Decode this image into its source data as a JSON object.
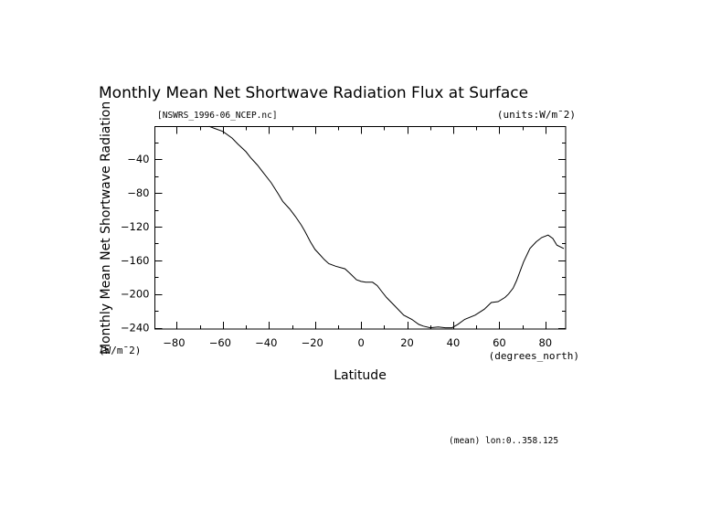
{
  "chart_data": {
    "type": "line",
    "title": "Monthly Mean Net Shortwave Radiation Flux at Surface",
    "subtitle_left": "[NSWRS_1996-06_NCEP.nc]",
    "subtitle_right": "(units:W/m¯2)",
    "xlabel": "Latitude",
    "xunits": "(degrees_north)",
    "ylabel": "Monthly Mean Net Shortwave Radiation",
    "yunits": "(W/m¯2)",
    "footnote": "(mean) lon:0..358.125",
    "xlim": [
      -89.5,
      88.8
    ],
    "ylim": [
      -241.5,
      -1.3
    ],
    "xticks": [
      -80,
      -60,
      -40,
      -20,
      0,
      20,
      40,
      60,
      80
    ],
    "xtick_labels": [
      "-80",
      "-60",
      "-40",
      "-20",
      "0",
      "20",
      "40",
      "60",
      "80"
    ],
    "yticks": [
      -40,
      -80,
      -120,
      -160,
      -200,
      -240
    ],
    "ytick_labels": [
      "-40",
      "-80",
      "-120",
      "-160",
      "-200",
      "-240"
    ],
    "grid": false,
    "series": [
      {
        "name": "NSWRS",
        "x": [
          -66,
          -64,
          -60,
          -56,
          -53.5,
          -50,
          -48,
          -45,
          -43,
          -39,
          -36,
          -34,
          -31,
          -28.5,
          -26,
          -24.5,
          -22,
          -20,
          -18,
          -16,
          -14,
          -11,
          -7,
          -4.6,
          -2,
          0,
          2,
          5,
          7,
          9,
          11,
          15,
          18.5,
          22,
          25,
          27,
          30,
          33.5,
          36.5,
          39.5,
          42,
          45,
          49.5,
          53.5,
          56.5,
          59.5,
          62.5,
          64,
          66,
          67.5,
          70.5,
          73.3,
          76,
          78.4,
          81.2,
          83.2,
          85,
          88
        ],
        "y": [
          -1,
          -3,
          -7,
          -15,
          -22,
          -31,
          -38,
          -47,
          -54,
          -68,
          -81,
          -90,
          -99,
          -108,
          -118,
          -125,
          -138,
          -147,
          -153,
          -159,
          -164,
          -167,
          -170,
          -176,
          -183,
          -185,
          -186,
          -186,
          -190,
          -197,
          -204,
          -215,
          -225,
          -230,
          -236,
          -238,
          -240,
          -239,
          -240,
          -240,
          -236,
          -230,
          -225,
          -218,
          -210,
          -209,
          -204,
          -200,
          -193,
          -184,
          -162,
          -146,
          -138,
          -133,
          -130,
          -134,
          -142,
          -146
        ]
      }
    ]
  }
}
